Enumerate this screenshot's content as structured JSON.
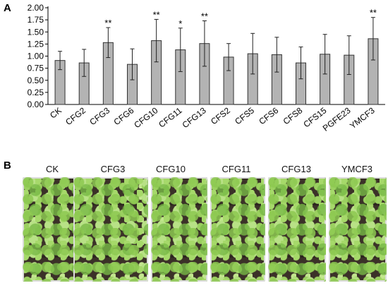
{
  "panels": {
    "a_letter": "A",
    "b_letter": "B"
  },
  "chart_data": {
    "type": "bar",
    "categories": [
      "CK",
      "CFG2",
      "CFG3",
      "CFG6",
      "CFG10",
      "CFG11",
      "CFG13",
      "CFS2",
      "CFS5",
      "CFS6",
      "CFS8",
      "CFS15",
      "PGFE23",
      "YMCF3"
    ],
    "values": [
      0.91,
      0.86,
      1.28,
      0.83,
      1.32,
      1.13,
      1.26,
      0.98,
      1.05,
      1.03,
      0.86,
      1.04,
      1.02,
      1.36
    ],
    "errors": [
      0.19,
      0.28,
      0.31,
      0.32,
      0.44,
      0.45,
      0.47,
      0.28,
      0.42,
      0.36,
      0.33,
      0.41,
      0.4,
      0.44
    ],
    "significance": [
      "",
      "",
      "**",
      "",
      "**",
      "*",
      "**",
      "",
      "",
      "",
      "",
      "",
      "",
      "**"
    ],
    "yticks": [
      "0.00",
      "0.25",
      "0.50",
      "0.75",
      "1.00",
      "1.25",
      "1.50",
      "1.75",
      "2.00"
    ],
    "ylim": [
      0,
      2.0
    ],
    "xlabel": "",
    "ylabel": "",
    "title": "",
    "grid": false,
    "colors": {
      "bar": "#b3b3b3",
      "bar_edge": "#333333",
      "error": "#222222"
    }
  },
  "photos": [
    {
      "label": "CK"
    },
    {
      "label": "CFG3"
    },
    {
      "label": "CFG10"
    },
    {
      "label": "CFG11"
    },
    {
      "label": "CFG13"
    },
    {
      "label": "YMCF3"
    }
  ]
}
